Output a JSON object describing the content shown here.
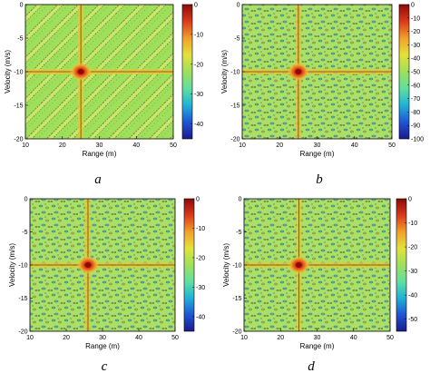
{
  "figure": {
    "colors": {
      "colormap": [
        "#1a1a8c",
        "#1f55d6",
        "#1fb2d6",
        "#5fe0a0",
        "#9ee05a",
        "#e3e23a",
        "#f2a02a",
        "#d93a1a",
        "#8c0a0a"
      ],
      "background_field": "#9ee05a",
      "contour_lines": "#1a1a00"
    }
  },
  "chart_data": [
    {
      "type": "heatmap",
      "panel_label": "a",
      "xlabel": "Range (m)",
      "ylabel": "Velocity (m/s)",
      "xlim": [
        10,
        50
      ],
      "ylim": [
        -20,
        0
      ],
      "xticks": [
        10,
        20,
        30,
        40,
        50
      ],
      "yticks": [
        0,
        -5,
        -10,
        -15,
        -20
      ],
      "colorbar": {
        "range": [
          -45,
          0
        ],
        "ticks": [
          0,
          -10,
          -20,
          -30,
          -40
        ]
      },
      "peak": {
        "range": 25,
        "velocity": -10,
        "value": 0
      },
      "texture": "diagonal-stripes"
    },
    {
      "type": "heatmap",
      "panel_label": "b",
      "xlabel": "Range (m)",
      "ylabel": "Velocity (m/s)",
      "xlim": [
        10,
        50
      ],
      "ylim": [
        -20,
        0
      ],
      "xticks": [
        10,
        20,
        30,
        40,
        50
      ],
      "yticks": [
        0,
        -5,
        -10,
        -15,
        -20
      ],
      "colorbar": {
        "range": [
          -100,
          0
        ],
        "ticks": [
          0,
          -10,
          -20,
          -30,
          -40,
          -50,
          -60,
          -70,
          -80,
          -90,
          -100
        ]
      },
      "peak": {
        "range": 25,
        "velocity": -10,
        "value": 0
      },
      "texture": "noise"
    },
    {
      "type": "heatmap",
      "panel_label": "c",
      "xlabel": "Range (m)",
      "ylabel": "Velocity (m/s)",
      "xlim": [
        10,
        50
      ],
      "ylim": [
        -20,
        0
      ],
      "xticks": [
        10,
        20,
        30,
        40,
        50
      ],
      "yticks": [
        0,
        -5,
        -10,
        -15,
        -20
      ],
      "colorbar": {
        "range": [
          -45,
          0
        ],
        "ticks": [
          0,
          -10,
          -20,
          -30,
          -40
        ]
      },
      "peak": {
        "range": 26,
        "velocity": -10,
        "value": 0
      },
      "texture": "noise"
    },
    {
      "type": "heatmap",
      "panel_label": "d",
      "xlabel": "Range (m)",
      "ylabel": "Velocity (m/s)",
      "xlim": [
        10,
        50
      ],
      "ylim": [
        -20,
        0
      ],
      "xticks": [
        10,
        20,
        30,
        40,
        50
      ],
      "yticks": [
        0,
        -5,
        -10,
        -15,
        -20
      ],
      "colorbar": {
        "range": [
          -55,
          0
        ],
        "ticks": [
          0,
          -10,
          -20,
          -30,
          -40,
          -50
        ]
      },
      "peak": {
        "range": 25,
        "velocity": -10,
        "value": 0
      },
      "texture": "noise"
    }
  ]
}
